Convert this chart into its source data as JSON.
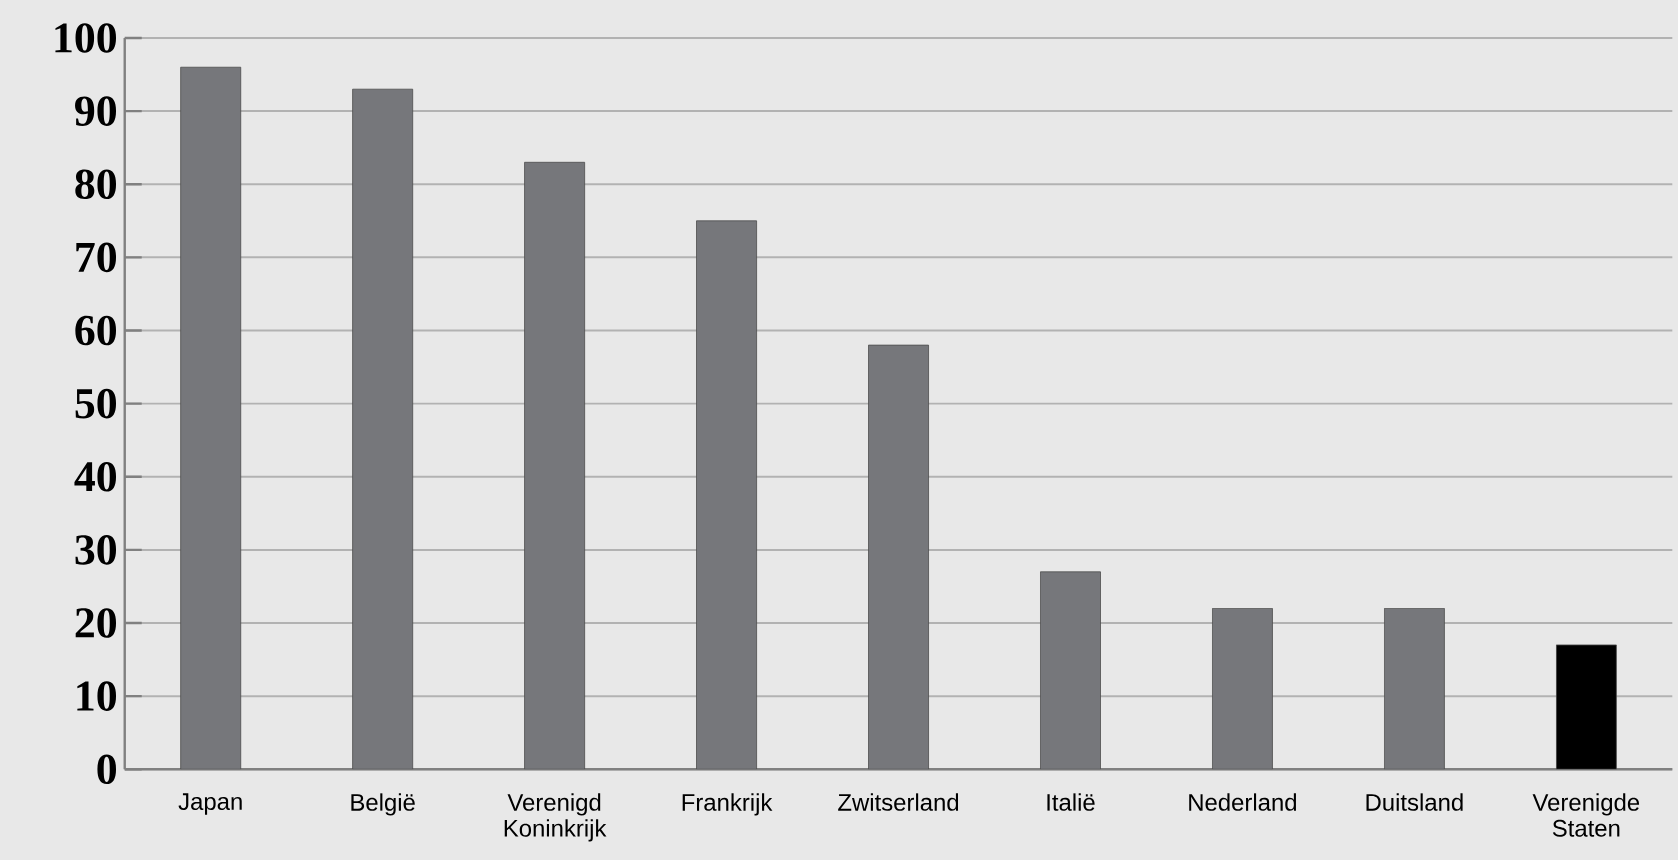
{
  "chart_data": {
    "type": "bar",
    "categories": [
      "Japan",
      "België",
      "Verenigd Koninkrijk",
      "Frankrijk",
      "Zwitserland",
      "Italië",
      "Nederland",
      "Duitsland",
      "Verenigde Staten"
    ],
    "values": [
      96,
      93,
      83,
      75,
      58,
      27,
      22,
      22,
      17
    ],
    "colors": [
      "#76777b",
      "#76777b",
      "#76777b",
      "#76777b",
      "#76777b",
      "#76777b",
      "#76777b",
      "#76777b",
      "#000000"
    ],
    "ylim": [
      0,
      100
    ],
    "yticks": [
      0,
      10,
      20,
      30,
      40,
      50,
      60,
      70,
      80,
      90,
      100
    ],
    "grid": "y"
  }
}
